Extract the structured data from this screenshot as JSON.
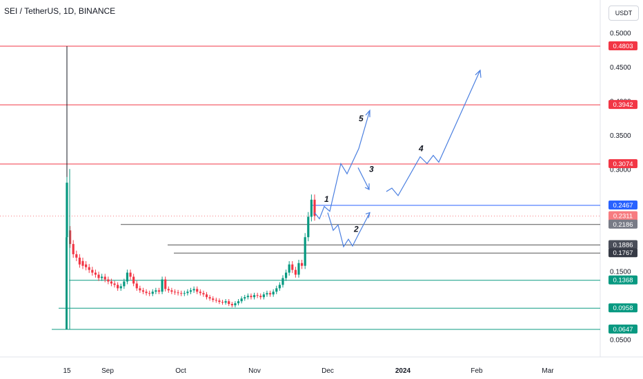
{
  "title": "SEI / TetherUS, 1D, BINANCE",
  "currency_label": "USDT",
  "colors": {
    "up": "#089981",
    "down": "#f23645",
    "red_line": "#f23645",
    "green_line": "#089981",
    "blue": "#2962ff",
    "wave": "#4a7fe0",
    "black_line": "#131722",
    "grid_text": "#131722"
  },
  "chart_data": {
    "type": "candlestick",
    "ylim": [
      0.03,
      0.56
    ],
    "y_ticks": [
      "0.5000",
      "0.4500",
      "0.4000",
      "0.3500",
      "0.3000",
      "0.2500",
      "0.1500",
      "0.0500"
    ],
    "x_labels": [
      {
        "label": "15",
        "bold": false
      },
      {
        "label": "Sep",
        "bold": false
      },
      {
        "label": "Oct",
        "bold": false
      },
      {
        "label": "Nov",
        "bold": false
      },
      {
        "label": "Dec",
        "bold": false
      },
      {
        "label": "2024",
        "bold": true
      },
      {
        "label": "Feb",
        "bold": false
      },
      {
        "label": "Mar",
        "bold": false
      }
    ],
    "price_tags": [
      {
        "value": 0.4803,
        "label": "0.4803",
        "color": "#f23645"
      },
      {
        "value": 0.3942,
        "label": "0.3942",
        "color": "#f23645"
      },
      {
        "value": 0.3074,
        "label": "0.3074",
        "color": "#f23645"
      },
      {
        "value": 0.2467,
        "label": "0.2467",
        "color": "#2962ff"
      },
      {
        "value": 0.2311,
        "label": "0.2311",
        "sublabel": "04:11:34",
        "color": "#f77c80"
      },
      {
        "value": 0.2186,
        "label": "0.2186",
        "color": "#787b86"
      },
      {
        "value": 0.1886,
        "label": "0.1886",
        "color": "#4a4e59"
      },
      {
        "value": 0.1767,
        "label": "0.1767",
        "color": "#363a45"
      },
      {
        "value": 0.1368,
        "label": "0.1368",
        "color": "#089981"
      },
      {
        "value": 0.0958,
        "label": "0.0958",
        "color": "#089981"
      },
      {
        "value": 0.0647,
        "label": "0.0647",
        "color": "#089981"
      }
    ],
    "wave_labels": [
      "1",
      "2",
      "3",
      "4",
      "5"
    ]
  }
}
